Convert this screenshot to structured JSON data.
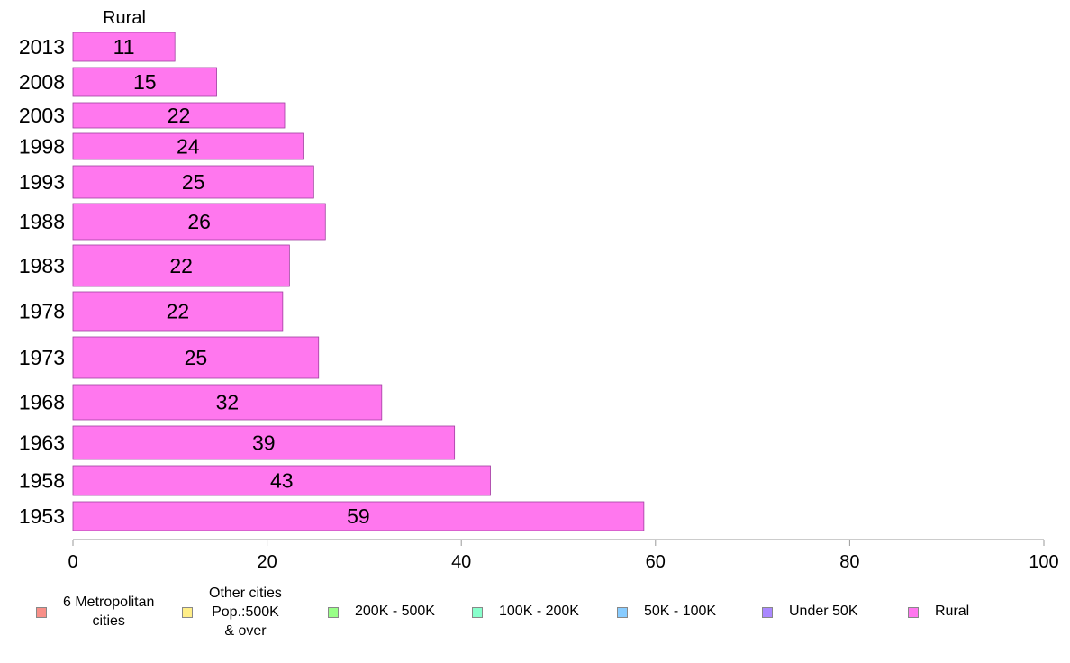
{
  "chart_data": {
    "type": "bar",
    "orientation": "horizontal",
    "title": "Rural",
    "categories": [
      "2013",
      "2008",
      "2003",
      "1998",
      "1993",
      "1988",
      "1983",
      "1978",
      "1973",
      "1968",
      "1963",
      "1958",
      "1953"
    ],
    "series": [
      {
        "name": "Rural",
        "color": "#ff77ee",
        "values": [
          10.5,
          14.8,
          21.8,
          23.7,
          24.8,
          26.0,
          22.3,
          21.6,
          25.3,
          31.8,
          39.3,
          43.0,
          58.8
        ],
        "labels": [
          "11",
          "15",
          "22",
          "24",
          "25",
          "26",
          "22",
          "22",
          "25",
          "32",
          "39",
          "43",
          "59"
        ]
      }
    ],
    "xlim": [
      0,
      100
    ],
    "xticks": [
      "0",
      "20",
      "40",
      "60",
      "80",
      "100"
    ],
    "xlabel": "",
    "ylabel": "",
    "grid": false,
    "legend_position": "bottom"
  },
  "legend": [
    {
      "label": "6 Metropolitan\ncities",
      "color": "#f88f88"
    },
    {
      "label": "Other cities\nPop.:500K\n& over",
      "color": "#ffee88"
    },
    {
      "label": "200K - 500K",
      "color": "#99ff88"
    },
    {
      "label": "100K - 200K",
      "color": "#88ffcc"
    },
    {
      "label": "50K - 100K",
      "color": "#88ccff"
    },
    {
      "label": "Under 50K",
      "color": "#aa88ff"
    },
    {
      "label": "Rural",
      "color": "#ff77ee"
    }
  ]
}
